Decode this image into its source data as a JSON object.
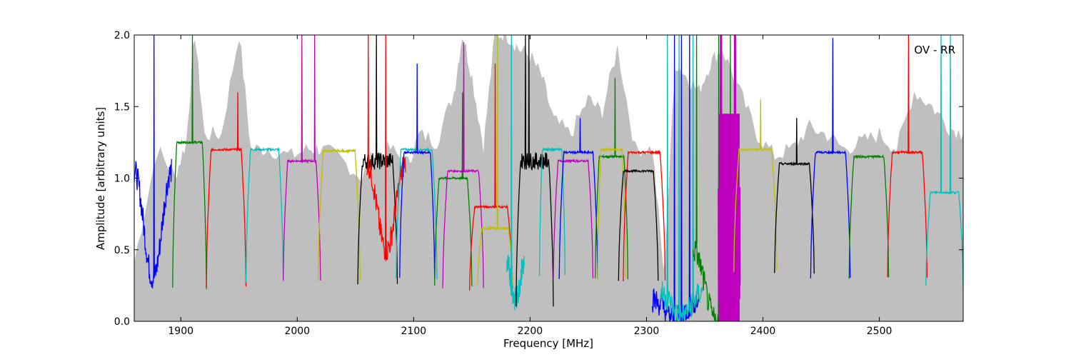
{
  "chart_data": {
    "type": "line",
    "title": "",
    "annotation": "OV - RR",
    "xlabel": "Frequency [MHz]",
    "ylabel": "Amplitude [arbitrary units]",
    "xlim": [
      1860,
      2572
    ],
    "ylim": [
      0.0,
      2.0
    ],
    "xticks": [
      1900,
      2000,
      2100,
      2200,
      2300,
      2400,
      2500
    ],
    "yticks": [
      0.0,
      0.5,
      1.0,
      1.5,
      2.0
    ],
    "xtick_labels": [
      "1900",
      "2000",
      "2100",
      "2200",
      "2300",
      "2400",
      "2500"
    ],
    "ytick_labels": [
      "0.0",
      "0.5",
      "1.0",
      "1.5",
      "2.0"
    ],
    "grid": false,
    "background_envelope": {
      "color": "#bfbfbf",
      "x": [
        1860,
        1880,
        1895,
        1905,
        1912,
        1920,
        1935,
        1950,
        1960,
        1975,
        1995,
        2010,
        2020,
        2035,
        2055,
        2065,
        2080,
        2095,
        2105,
        2120,
        2135,
        2142,
        2150,
        2160,
        2170,
        2180,
        2190,
        2200,
        2210,
        2220,
        2235,
        2250,
        2262,
        2275,
        2290,
        2305,
        2315,
        2325,
        2335,
        2345,
        2355,
        2365,
        2380,
        2395,
        2410,
        2425,
        2440,
        2455,
        2470,
        2485,
        2500,
        2515,
        2530,
        2545,
        2560,
        2572
      ],
      "y": [
        0.4,
        1.2,
        1.0,
        1.25,
        2.0,
        1.3,
        1.3,
        2.0,
        1.2,
        1.2,
        1.15,
        1.2,
        1.2,
        1.15,
        1.0,
        1.15,
        1.2,
        1.1,
        1.3,
        1.25,
        1.6,
        2.0,
        1.7,
        1.2,
        2.0,
        2.0,
        1.9,
        1.85,
        1.7,
        1.4,
        1.3,
        1.55,
        1.45,
        1.9,
        1.2,
        1.2,
        0.3,
        1.8,
        1.7,
        1.6,
        1.8,
        1.9,
        1.6,
        1.3,
        1.15,
        1.2,
        1.35,
        1.3,
        1.2,
        1.25,
        1.3,
        1.2,
        1.6,
        1.5,
        1.35,
        1.3
      ]
    },
    "series": [
      {
        "color": "#0000ff",
        "segments": [
          {
            "x0": 1860,
            "x1": 1892,
            "shape": "noisy_dip",
            "level": 1.05,
            "min": 0.3,
            "spikes": [
              [
                1877,
                2.0
              ]
            ]
          }
        ]
      },
      {
        "color": "#008000",
        "segments": [
          {
            "x0": 1893,
            "x1": 1922,
            "shape": "band",
            "level": 1.25,
            "min": 0.23,
            "spikes": [
              [
                1910,
                2.0
              ]
            ]
          }
        ]
      },
      {
        "color": "#ff0000",
        "segments": [
          {
            "x0": 1922,
            "x1": 1956,
            "shape": "band",
            "level": 1.2,
            "min": 0.24,
            "spikes": [
              [
                1949,
                1.6
              ]
            ]
          }
        ]
      },
      {
        "color": "#00bfbf",
        "segments": [
          {
            "x0": 1956,
            "x1": 1988,
            "shape": "band",
            "level": 1.2,
            "min": 0.28,
            "spikes": []
          }
        ]
      },
      {
        "color": "#bf00bf",
        "segments": [
          {
            "x0": 1988,
            "x1": 2020,
            "shape": "band",
            "level": 1.12,
            "min": 0.28,
            "spikes": [
              [
                2004,
                2.0
              ],
              [
                2015,
                2.0
              ]
            ]
          }
        ]
      },
      {
        "color": "#bfbf00",
        "segments": [
          {
            "x0": 2018,
            "x1": 2054,
            "shape": "band",
            "level": 1.19,
            "min": 0.28,
            "spikes": []
          }
        ]
      },
      {
        "color": "#000000",
        "segments": [
          {
            "x0": 2052,
            "x1": 2086,
            "shape": "band_noisy",
            "level": 1.12,
            "min": 0.26,
            "spikes": [
              [
                2068,
                2.0
              ]
            ]
          }
        ]
      },
      {
        "color": "#ff0000",
        "segments": [
          {
            "x0": 2060,
            "x1": 2093,
            "shape": "noisy_dip",
            "level": 1.1,
            "min": 0.5,
            "spikes": [
              [
                2061,
                2.0
              ],
              [
                2076,
                2.0
              ]
            ]
          }
        ]
      },
      {
        "color": "#00bfbf",
        "segments": [
          {
            "x0": 2085,
            "x1": 2120,
            "shape": "band",
            "level": 1.2,
            "min": 0.3,
            "spikes": []
          }
        ]
      },
      {
        "color": "#0000ff",
        "segments": [
          {
            "x0": 2088,
            "x1": 2118,
            "shape": "band",
            "level": 1.18,
            "min": 0.3,
            "spikes": [
              [
                2103,
                1.8
              ]
            ]
          }
        ]
      },
      {
        "color": "#008000",
        "segments": [
          {
            "x0": 2118,
            "x1": 2150,
            "shape": "band",
            "level": 1.0,
            "min": 0.25,
            "spikes": [
              [
                2142,
                1.6
              ]
            ]
          }
        ]
      },
      {
        "color": "#bf00bf",
        "segments": [
          {
            "x0": 2125,
            "x1": 2160,
            "shape": "band",
            "level": 1.05,
            "min": 0.23,
            "spikes": [
              [
                2143,
                1.95
              ]
            ]
          }
        ]
      },
      {
        "color": "#ff0000",
        "segments": [
          {
            "x0": 2148,
            "x1": 2185,
            "shape": "band",
            "level": 0.8,
            "min": 0.22,
            "spikes": [
              [
                2170,
                1.8
              ]
            ]
          }
        ]
      },
      {
        "color": "#bfbf00",
        "segments": [
          {
            "x0": 2155,
            "x1": 2185,
            "shape": "band",
            "level": 0.65,
            "min": 0.25,
            "spikes": [
              [
                2172,
                2.0
              ]
            ]
          }
        ]
      },
      {
        "color": "#00bfbf",
        "segments": [
          {
            "x0": 2180,
            "x1": 2195,
            "shape": "noisy_dip",
            "level": 0.4,
            "min": 0.15,
            "spikes": [
              [
                2184,
                2.0
              ]
            ]
          }
        ]
      },
      {
        "color": "#000000",
        "segments": [
          {
            "x0": 2188,
            "x1": 2220,
            "shape": "band_noisy",
            "level": 1.12,
            "min": 0.1,
            "spikes": [
              [
                2196,
                2.0
              ],
              [
                2199,
                2.0
              ]
            ]
          }
        ]
      },
      {
        "color": "#00bfbf",
        "segments": [
          {
            "x0": 2208,
            "x1": 2230,
            "shape": "band",
            "level": 1.2,
            "min": 0.32,
            "spikes": []
          }
        ]
      },
      {
        "color": "#bf00bf",
        "segments": [
          {
            "x0": 2220,
            "x1": 2254,
            "shape": "band",
            "level": 1.12,
            "min": 0.3,
            "spikes": []
          }
        ]
      },
      {
        "color": "#0000ff",
        "segments": [
          {
            "x0": 2225,
            "x1": 2258,
            "shape": "band",
            "level": 1.18,
            "min": 0.3,
            "spikes": [
              [
                2243,
                1.42
              ]
            ]
          }
        ]
      },
      {
        "color": "#008000",
        "segments": [
          {
            "x0": 2256,
            "x1": 2284,
            "shape": "band",
            "level": 1.15,
            "min": 0.3,
            "spikes": [
              [
                2273,
                1.7
              ]
            ]
          }
        ]
      },
      {
        "color": "#bfbf00",
        "segments": [
          {
            "x0": 2258,
            "x1": 2282,
            "shape": "band",
            "level": 1.2,
            "min": 0.3,
            "spikes": []
          }
        ]
      },
      {
        "color": "#ff0000",
        "segments": [
          {
            "x0": 2280,
            "x1": 2316,
            "shape": "band",
            "level": 1.18,
            "min": 0.28,
            "spikes": []
          }
        ]
      },
      {
        "color": "#000000",
        "segments": [
          {
            "x0": 2276,
            "x1": 2310,
            "shape": "band",
            "level": 1.05,
            "min": 0.28,
            "spikes": []
          }
        ]
      },
      {
        "color": "#0000ff",
        "segments": [
          {
            "x0": 2305,
            "x1": 2345,
            "shape": "noisy_dip",
            "level": 0.15,
            "min": 0.02,
            "spikes": [
              [
                2324,
                2.0
              ],
              [
                2330,
                2.0
              ],
              [
                2337,
                2.0
              ]
            ]
          }
        ]
      },
      {
        "color": "#00bfbf",
        "segments": [
          {
            "x0": 2312,
            "x1": 2348,
            "shape": "noisy_dip",
            "level": 0.2,
            "min": 0.04,
            "spikes": [
              [
                2318,
                2.0
              ],
              [
                2328,
                2.0
              ],
              [
                2340,
                2.0
              ]
            ]
          }
        ]
      },
      {
        "color": "#008000",
        "segments": [
          {
            "x0": 2340,
            "x1": 2380,
            "shape": "noisy_dip",
            "level": 0.5,
            "min": 0.0,
            "spikes": [
              [
                2343,
                2.0
              ],
              [
                2362,
                2.0
              ],
              [
                2372,
                2.0
              ]
            ]
          }
        ]
      },
      {
        "color": "#bf00bf",
        "segments": [
          {
            "x0": 2362,
            "x1": 2380,
            "shape": "block",
            "level": 1.2,
            "min": 0.0,
            "spikes": [
              [
                2364,
                2.0
              ],
              [
                2376,
                2.0
              ]
            ]
          }
        ]
      },
      {
        "color": "#bfbf00",
        "segments": [
          {
            "x0": 2375,
            "x1": 2412,
            "shape": "band",
            "level": 1.2,
            "min": 0.35,
            "spikes": [
              [
                2398,
                1.55
              ]
            ]
          }
        ]
      },
      {
        "color": "#000000",
        "segments": [
          {
            "x0": 2410,
            "x1": 2444,
            "shape": "band",
            "level": 1.1,
            "min": 0.33,
            "spikes": [
              [
                2429,
                1.42
              ]
            ]
          }
        ]
      },
      {
        "color": "#0000ff",
        "segments": [
          {
            "x0": 2441,
            "x1": 2475,
            "shape": "band",
            "level": 1.18,
            "min": 0.3,
            "spikes": [
              [
                2460,
                1.98
              ]
            ]
          }
        ]
      },
      {
        "color": "#008000",
        "segments": [
          {
            "x0": 2474,
            "x1": 2508,
            "shape": "band",
            "level": 1.15,
            "min": 0.3,
            "spikes": []
          }
        ]
      },
      {
        "color": "#ff0000",
        "segments": [
          {
            "x0": 2507,
            "x1": 2541,
            "shape": "band",
            "level": 1.18,
            "min": 0.3,
            "spikes": [
              [
                2525,
                2.0
              ]
            ]
          }
        ]
      },
      {
        "color": "#00bfbf",
        "segments": [
          {
            "x0": 2540,
            "x1": 2572,
            "shape": "band",
            "level": 0.9,
            "min": 0.25,
            "spikes": [
              [
                2553,
                2.0
              ],
              [
                2561,
                2.0
              ]
            ]
          }
        ]
      }
    ]
  }
}
